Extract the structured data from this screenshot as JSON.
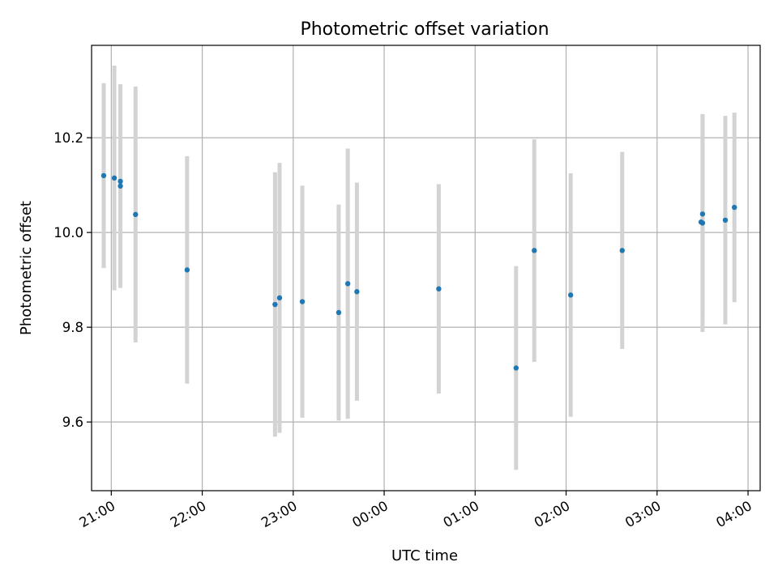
{
  "chart_data": {
    "type": "scatter",
    "title": "Photometric offset variation",
    "xlabel": "UTC time",
    "ylabel": "Photometric offset",
    "x_unit": "UTC time (hours)",
    "xlim": [
      "20:47",
      "04:08"
    ],
    "ylim": [
      9.455,
      10.395
    ],
    "x_ticks": [
      "21:00",
      "22:00",
      "23:00",
      "00:00",
      "01:00",
      "02:00",
      "03:00",
      "04:00"
    ],
    "y_ticks": [
      9.6,
      9.8,
      10.0,
      10.2
    ],
    "y_tick_labels": [
      "9.6",
      "9.8",
      "10.0",
      "10.2"
    ],
    "grid": true,
    "marker_color": "#1f77b4",
    "errorbar_color": "#d3d3d3",
    "points": [
      {
        "time": "20:55",
        "y": 10.12,
        "yerr": 0.195
      },
      {
        "time": "21:02",
        "y": 10.115,
        "yerr": 0.237
      },
      {
        "time": "21:06",
        "y": 10.108,
        "yerr": 0.0
      },
      {
        "time": "21:06",
        "y": 10.098,
        "yerr": 0.215
      },
      {
        "time": "21:16",
        "y": 10.038,
        "yerr": 0.27
      },
      {
        "time": "21:50",
        "y": 9.921,
        "yerr": 0.24
      },
      {
        "time": "22:48",
        "y": 9.848,
        "yerr": 0.279
      },
      {
        "time": "22:51",
        "y": 9.862,
        "yerr": 0.285
      },
      {
        "time": "23:06",
        "y": 9.854,
        "yerr": 0.245
      },
      {
        "time": "23:30",
        "y": 9.831,
        "yerr": 0.228
      },
      {
        "time": "23:36",
        "y": 9.892,
        "yerr": 0.285
      },
      {
        "time": "23:42",
        "y": 9.875,
        "yerr": 0.23
      },
      {
        "time": "00:36",
        "y": 9.881,
        "yerr": 0.221
      },
      {
        "time": "01:27",
        "y": 9.714,
        "yerr": 0.215
      },
      {
        "time": "01:39",
        "y": 9.962,
        "yerr": 0.235
      },
      {
        "time": "02:03",
        "y": 9.868,
        "yerr": 0.257
      },
      {
        "time": "02:37",
        "y": 9.962,
        "yerr": 0.208
      },
      {
        "time": "03:29",
        "y": 10.022,
        "yerr": 0.0
      },
      {
        "time": "03:30",
        "y": 10.039,
        "yerr": 0.21
      },
      {
        "time": "03:30",
        "y": 10.02,
        "yerr": 0.23
      },
      {
        "time": "03:45",
        "y": 10.026,
        "yerr": 0.22
      },
      {
        "time": "03:51",
        "y": 10.053,
        "yerr": 0.2
      }
    ]
  }
}
